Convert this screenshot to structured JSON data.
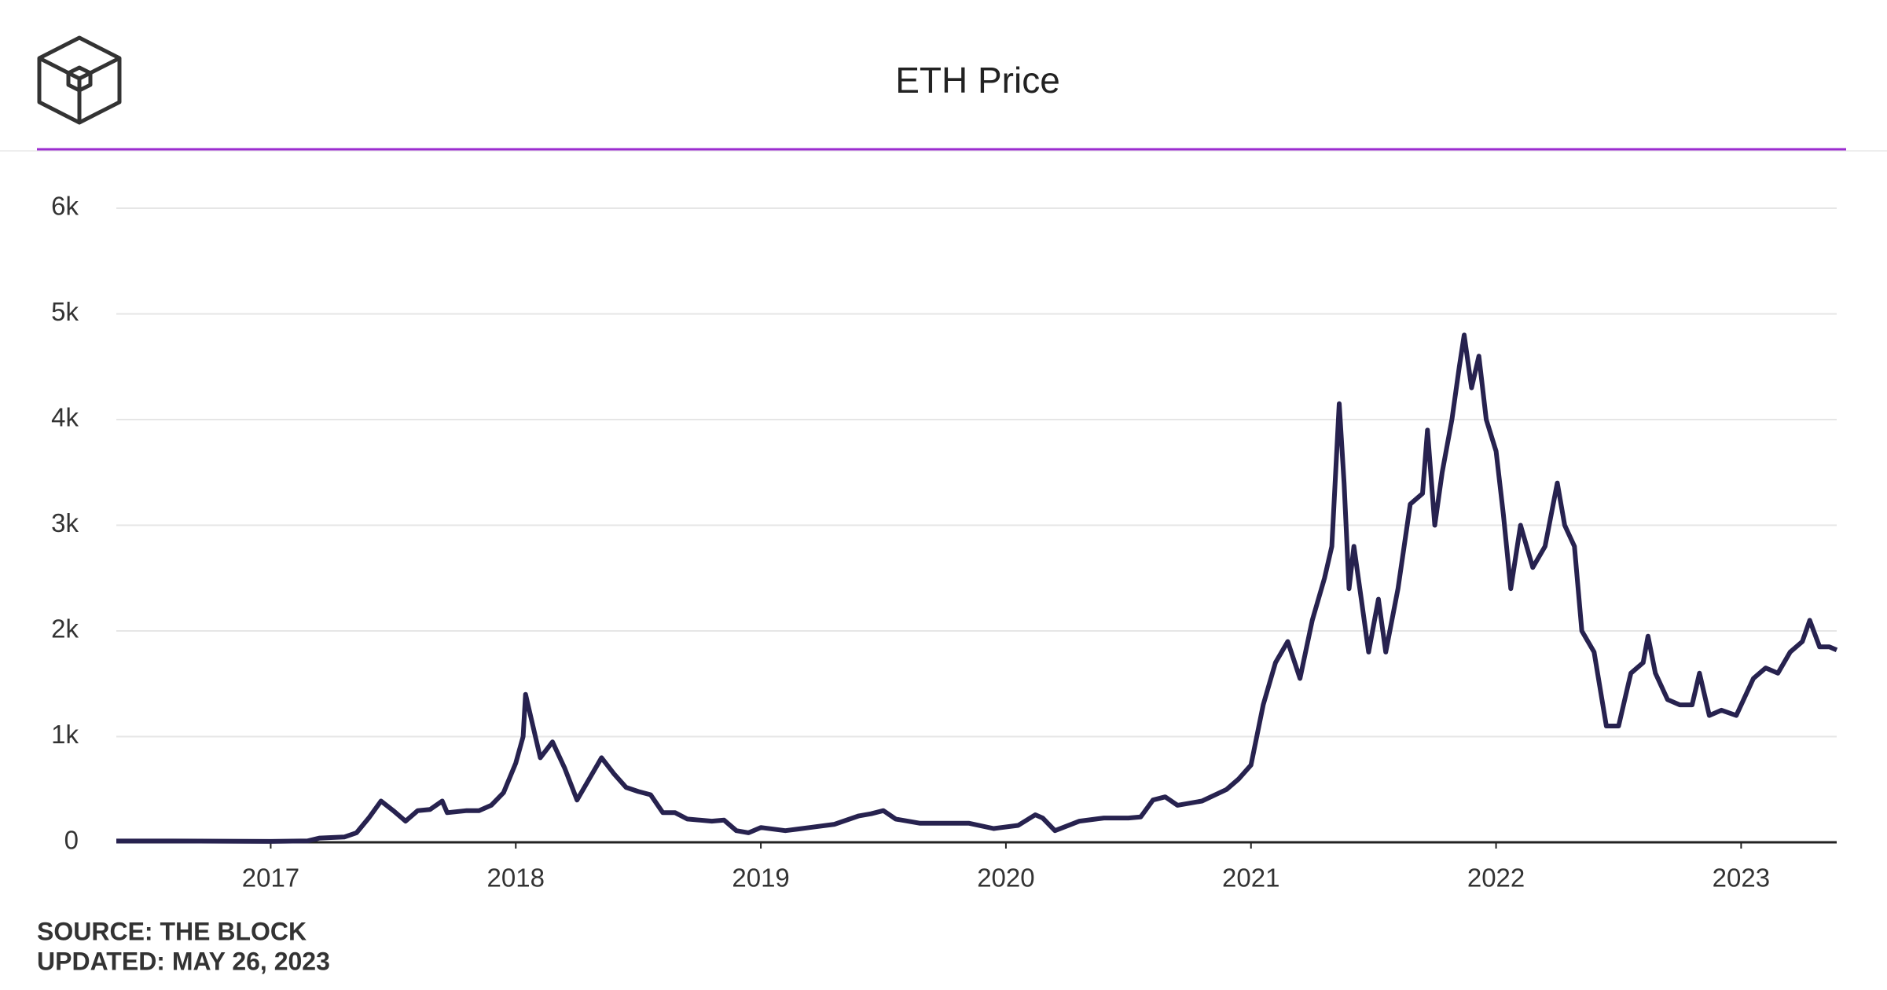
{
  "chart_data": {
    "type": "line",
    "title": "ETH Price",
    "source": "SOURCE: THE BLOCK",
    "updated": "UPDATED: MAY 26, 2023",
    "color": "#27224f",
    "grid": true,
    "xlim": [
      2016.37,
      2023.39
    ],
    "xticks": [
      2017,
      2018,
      2019,
      2020,
      2021,
      2022,
      2023
    ],
    "ylim": [
      0,
      6000
    ],
    "yticks": [
      0,
      {
        "value": 1000,
        "label": "1k"
      },
      {
        "value": 2000,
        "label": "2k"
      },
      {
        "value": 3000,
        "label": "3k"
      },
      {
        "value": 4000,
        "label": "4k"
      },
      {
        "value": 5000,
        "label": "5k"
      },
      {
        "value": 6000,
        "label": "6k"
      }
    ],
    "x": [
      2016.37,
      2016.6,
      2016.9,
      2017.0,
      2017.15,
      2017.2,
      2017.3,
      2017.35,
      2017.4,
      2017.45,
      2017.5,
      2017.55,
      2017.6,
      2017.65,
      2017.7,
      2017.72,
      2017.8,
      2017.85,
      2017.9,
      2017.95,
      2018.0,
      2018.03,
      2018.04,
      2018.07,
      2018.1,
      2018.15,
      2018.2,
      2018.25,
      2018.3,
      2018.35,
      2018.4,
      2018.45,
      2018.5,
      2018.55,
      2018.6,
      2018.65,
      2018.7,
      2018.8,
      2018.85,
      2018.9,
      2018.95,
      2019.0,
      2019.1,
      2019.2,
      2019.3,
      2019.4,
      2019.45,
      2019.5,
      2019.55,
      2019.65,
      2019.75,
      2019.85,
      2019.95,
      2020.05,
      2020.12,
      2020.15,
      2020.2,
      2020.3,
      2020.4,
      2020.5,
      2020.55,
      2020.6,
      2020.65,
      2020.7,
      2020.8,
      2020.9,
      2020.95,
      2021.0,
      2021.05,
      2021.1,
      2021.15,
      2021.2,
      2021.25,
      2021.3,
      2021.33,
      2021.36,
      2021.38,
      2021.4,
      2021.42,
      2021.45,
      2021.48,
      2021.52,
      2021.55,
      2021.6,
      2021.65,
      2021.7,
      2021.72,
      2021.75,
      2021.78,
      2021.82,
      2021.85,
      2021.87,
      2021.9,
      2021.93,
      2021.96,
      2022.0,
      2022.03,
      2022.06,
      2022.1,
      2022.15,
      2022.2,
      2022.25,
      2022.28,
      2022.32,
      2022.35,
      2022.4,
      2022.45,
      2022.5,
      2022.55,
      2022.6,
      2022.62,
      2022.65,
      2022.7,
      2022.75,
      2022.8,
      2022.83,
      2022.87,
      2022.92,
      2022.98,
      2023.05,
      2023.1,
      2023.15,
      2023.2,
      2023.25,
      2023.28,
      2023.32,
      2023.36,
      2023.39
    ],
    "values": [
      12,
      12,
      9,
      8,
      13,
      40,
      50,
      90,
      230,
      390,
      300,
      200,
      300,
      310,
      390,
      280,
      300,
      300,
      350,
      470,
      750,
      1000,
      1400,
      1100,
      800,
      950,
      700,
      400,
      600,
      800,
      650,
      520,
      480,
      450,
      280,
      280,
      220,
      200,
      210,
      110,
      90,
      140,
      110,
      140,
      170,
      250,
      270,
      300,
      220,
      180,
      180,
      180,
      130,
      160,
      260,
      230,
      110,
      200,
      230,
      230,
      240,
      400,
      430,
      350,
      390,
      500,
      600,
      730,
      1300,
      1700,
      1900,
      1550,
      2100,
      2500,
      2800,
      4150,
      3400,
      2400,
      2800,
      2300,
      1800,
      2300,
      1800,
      2400,
      3200,
      3300,
      3900,
      3000,
      3500,
      4000,
      4500,
      4800,
      4300,
      4600,
      4000,
      3700,
      3100,
      2400,
      3000,
      2600,
      2800,
      3400,
      3000,
      2800,
      2000,
      1800,
      1100,
      1100,
      1600,
      1700,
      1950,
      1600,
      1350,
      1300,
      1300,
      1600,
      1200,
      1250,
      1200,
      1550,
      1650,
      1600,
      1800,
      1900,
      2100,
      1850,
      1850,
      1820
    ]
  }
}
